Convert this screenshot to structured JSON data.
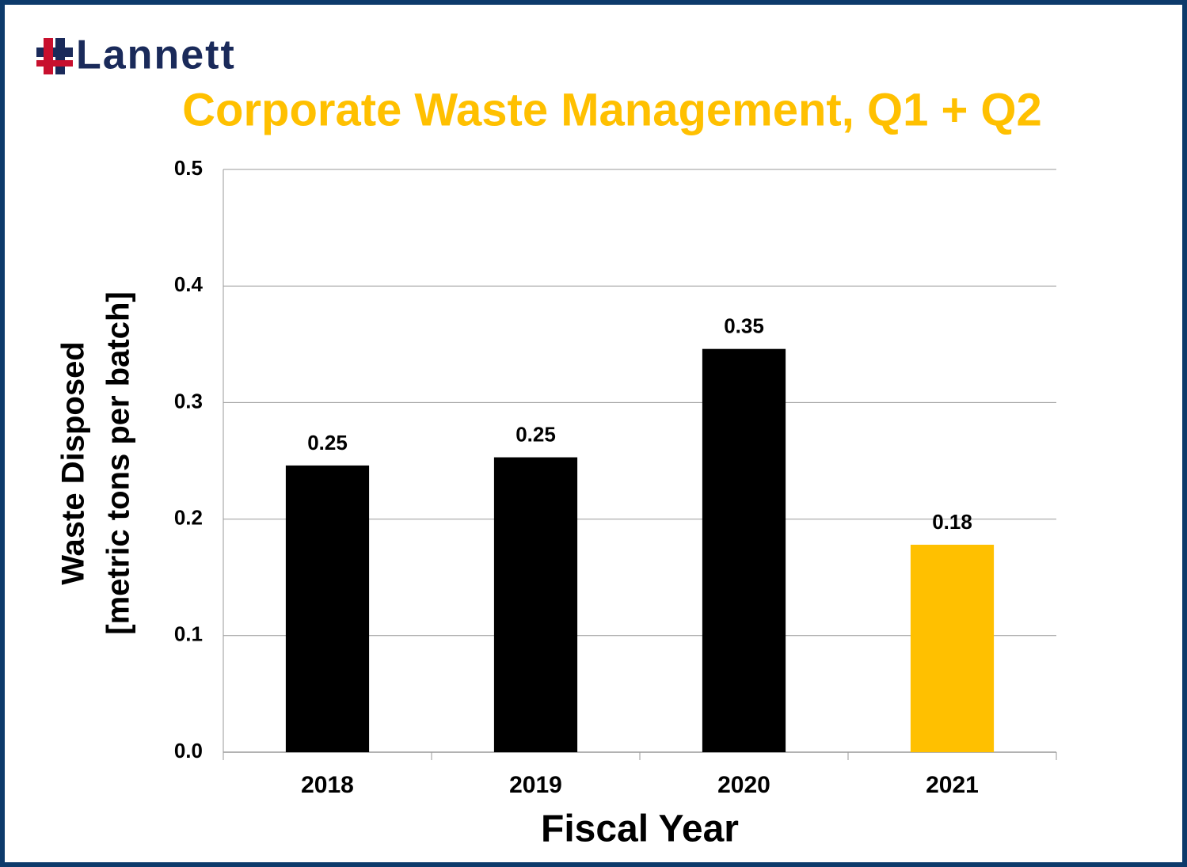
{
  "logo": "Lannett",
  "chart_data": {
    "type": "bar",
    "title": "Corporate Waste Management, Q1 + Q2",
    "categories": [
      "2018",
      "2019",
      "2020",
      "2021"
    ],
    "values": [
      0.246,
      0.253,
      0.346,
      0.178
    ],
    "value_labels": [
      "0.25",
      "0.25",
      "0.35",
      "0.18"
    ],
    "colors": [
      "#000000",
      "#000000",
      "#000000",
      "#ffc000"
    ],
    "ylabel": [
      "Waste Disposed",
      "[metric tons per batch]"
    ],
    "xlabel": "Fiscal Year",
    "ylim": [
      0,
      0.5
    ],
    "yticks": [
      {
        "value": 0,
        "label": "0.0"
      },
      0.1,
      0.2,
      0.3,
      0.4,
      0.5
    ],
    "grid": true
  }
}
